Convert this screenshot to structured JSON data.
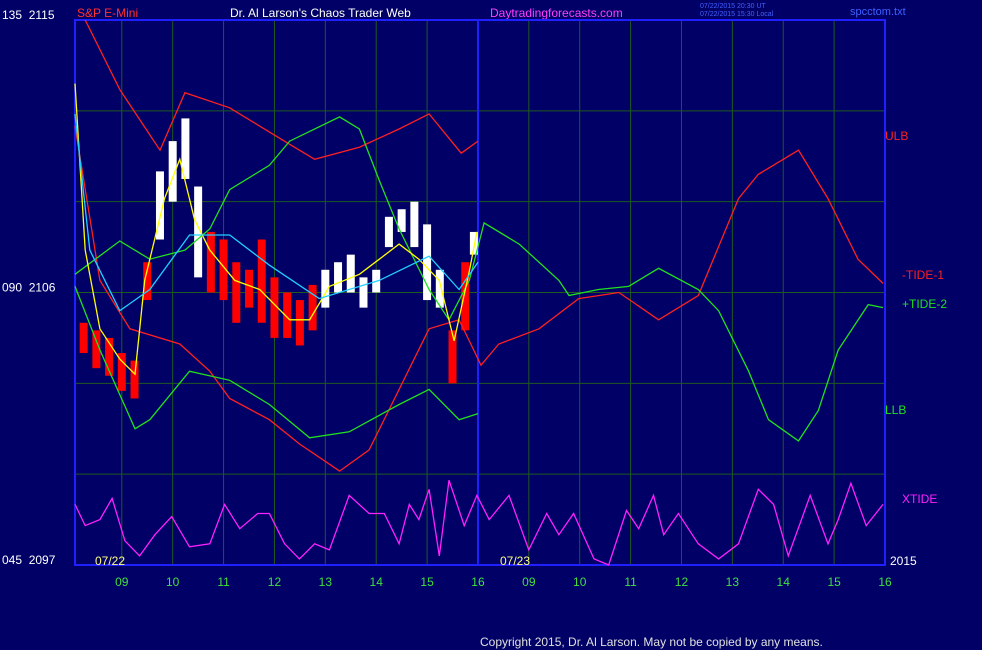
{
  "chart_data": {
    "type": "line",
    "title": "Dr. Al Larson's Chaos Trader Web",
    "subtitle": "S&P E-Mini",
    "source": "Daytradingforecasts.com",
    "timestamps": [
      "07/22/2015 20:30 UT",
      "07/22/2015 15:30 Local"
    ],
    "file": "spcctom.txt",
    "copyright": "Copyright 2015, Dr. Al Larson. May not be copied by any means.",
    "date_labels": [
      "07/22",
      "07/23",
      "2015"
    ],
    "background": "#000066",
    "grid": true,
    "grid_color": "#1f5a1f",
    "frame_color": "#2020ff",
    "day_break": 16,
    "xlim": [
      8.08,
      24
    ],
    "xticks": [
      {
        "value": 9,
        "label": "09"
      },
      10,
      11,
      12,
      13,
      14,
      15,
      16,
      {
        "value": 17,
        "label": "09"
      },
      {
        "value": 18,
        "label": "10"
      },
      {
        "value": 19,
        "label": "11"
      },
      {
        "value": 20,
        "label": "12"
      },
      {
        "value": 21,
        "label": "13"
      },
      {
        "value": 22,
        "label": "14"
      },
      {
        "value": 23,
        "label": "15"
      },
      {
        "value": 24,
        "label": "16"
      }
    ],
    "ylim": [
      2097,
      2115
    ],
    "yticks": [
      {
        "value": 2115,
        "label": "135  2115"
      },
      {
        "value": 2106,
        "label": "090  2106"
      },
      {
        "value": 2097,
        "label": "045  2097"
      }
    ],
    "ygrid": [
      2100,
      2103,
      2109,
      2112
    ],
    "bars": {
      "x": [
        8.25,
        8.5,
        8.75,
        9.0,
        9.25,
        9.5,
        9.75,
        10.0,
        10.25,
        10.5,
        10.75,
        11.0,
        11.25,
        11.5,
        11.75,
        12.0,
        12.25,
        12.5,
        12.75,
        13.0,
        13.25,
        13.5,
        13.75,
        14.0,
        14.25,
        14.5,
        14.75,
        15.0,
        15.25,
        15.5,
        15.75,
        15.92
      ],
      "high": [
        2105,
        2104.75,
        2104.5,
        2104,
        2103.75,
        2107,
        2110,
        2111,
        2111.75,
        2109.5,
        2108,
        2107.75,
        2107,
        2106.75,
        2107.75,
        2106.5,
        2106,
        2105.75,
        2106.25,
        2106.75,
        2107,
        2107.25,
        2106.5,
        2106.75,
        2108.5,
        2108.75,
        2109,
        2108.25,
        2106.75,
        2104.75,
        2107,
        2108
      ],
      "low": [
        2104,
        2103.5,
        2103.25,
        2102.75,
        2102.5,
        2105.75,
        2107.75,
        2109,
        2109.75,
        2106.5,
        2106,
        2105.75,
        2105,
        2105.5,
        2105,
        2104.5,
        2104.5,
        2104.25,
        2104.75,
        2105.5,
        2106,
        2106,
        2105.5,
        2106,
        2107.5,
        2108,
        2107.5,
        2105.75,
        2105.5,
        2103,
        2104.75,
        2107.25
      ],
      "colors": [
        "#ff0000",
        "#ff0000",
        "#ff0000",
        "#ff0000",
        "#ff0000",
        "#ff0000",
        "#ffffff",
        "#ffffff",
        "#ffffff",
        "#ffffff",
        "#ff0000",
        "#ff0000",
        "#ff0000",
        "#ff0000",
        "#ff0000",
        "#ff0000",
        "#ff0000",
        "#ff0000",
        "#ff0000",
        "#ffffff",
        "#ffffff",
        "#ffffff",
        "#ffffff",
        "#ffffff",
        "#ffffff",
        "#ffffff",
        "#ffffff",
        "#ffffff",
        "#ffffff",
        "#ff0000",
        "#ff0000",
        "#ffffff"
      ]
    },
    "series": [
      {
        "name": "ULB",
        "color": "#ff2020",
        "x": [
          8.28,
          8.96,
          9.75,
          10.24,
          11.12,
          12.0,
          12.79,
          13.67,
          14.45,
          15.04,
          15.67,
          16.0
        ],
        "values": [
          2115,
          2112.7,
          2110.7,
          2112.6,
          2112.1,
          2111.2,
          2110.4,
          2110.8,
          2111.4,
          2111.9,
          2110.6,
          2111.0
        ]
      },
      {
        "name": "-TIDE-1",
        "color": "#ff2020",
        "x": [
          8.08,
          8.57,
          9.16,
          10.14,
          10.73,
          11.12,
          11.9,
          12.49,
          13.28,
          13.86,
          14.45,
          15.04,
          15.63,
          15.83,
          16.06,
          16.41,
          17.2,
          17.98,
          18.77,
          19.55,
          20.33,
          21.12,
          21.51,
          22.3,
          22.88,
          23.47,
          23.96
        ],
        "values": [
          2111.5,
          2106.4,
          2104.8,
          2104.3,
          2103.4,
          2102.5,
          2101.8,
          2101.0,
          2100.1,
          2100.8,
          2102.8,
          2104.8,
          2105.1,
          2104.4,
          2103.6,
          2104.3,
          2104.8,
          2105.8,
          2106.0,
          2105.1,
          2105.9,
          2109.1,
          2109.9,
          2110.7,
          2109.1,
          2107.1,
          2106.3
        ]
      },
      {
        "name": "+TIDE-2",
        "color": "#20e020",
        "x": [
          8.08,
          8.96,
          9.55,
          10.24,
          10.73,
          11.12,
          11.9,
          12.3,
          13.28,
          13.67,
          14.06,
          14.45,
          15.04,
          15.43,
          15.83,
          16.12,
          16.81,
          17.59,
          17.79,
          18.37,
          18.96,
          19.55,
          20.33,
          20.73,
          21.32,
          21.71,
          22.3,
          22.69,
          23.08,
          23.67,
          23.96
        ],
        "values": [
          2106.6,
          2107.7,
          2107.1,
          2107.4,
          2108.1,
          2109.4,
          2110.2,
          2111.0,
          2111.8,
          2111.4,
          2109.7,
          2108.1,
          2106.1,
          2105.1,
          2106.4,
          2108.3,
          2107.6,
          2106.4,
          2105.9,
          2106.1,
          2106.2,
          2106.8,
          2106.1,
          2105.4,
          2103.4,
          2101.8,
          2101.1,
          2102.1,
          2104.1,
          2105.6,
          2105.5
        ]
      },
      {
        "name": "LLB",
        "color": "#20e020",
        "x": [
          8.08,
          8.57,
          9.26,
          9.55,
          10.33,
          11.12,
          11.9,
          12.69,
          13.47,
          14.45,
          15.04,
          15.63,
          16.0
        ],
        "values": [
          2106.2,
          2104.1,
          2101.5,
          2101.8,
          2103.4,
          2103.1,
          2102.3,
          2101.2,
          2101.4,
          2102.3,
          2102.8,
          2101.8,
          2102.0
        ]
      },
      {
        "name": "XTIDE",
        "color": "#ff20ff",
        "x": [
          8.08,
          8.28,
          8.57,
          8.81,
          9.06,
          9.35,
          9.65,
          9.98,
          10.33,
          10.73,
          11.02,
          11.32,
          11.67,
          11.9,
          12.2,
          12.49,
          12.79,
          13.08,
          13.47,
          13.86,
          14.16,
          14.45,
          14.65,
          14.84,
          15.04,
          15.24,
          15.43,
          15.73,
          15.98,
          16.22,
          16.61,
          17.0,
          17.35,
          17.59,
          17.88,
          18.28,
          18.57,
          18.92,
          19.16,
          19.45,
          19.65,
          19.94,
          20.33,
          20.73,
          21.12,
          21.51,
          21.81,
          22.1,
          22.53,
          22.88,
          23.08,
          23.33,
          23.63,
          23.96
        ],
        "values": [
          2099.0,
          2098.3,
          2098.5,
          2099.2,
          2097.8,
          2097.3,
          2098.0,
          2098.6,
          2097.6,
          2097.7,
          2099.0,
          2098.2,
          2098.7,
          2098.7,
          2097.7,
          2097.2,
          2097.7,
          2097.5,
          2099.3,
          2098.7,
          2098.7,
          2097.7,
          2099.0,
          2098.5,
          2099.5,
          2097.3,
          2099.8,
          2098.3,
          2099.3,
          2098.5,
          2099.3,
          2097.5,
          2098.7,
          2098.0,
          2098.7,
          2097.2,
          2097.0,
          2098.8,
          2098.2,
          2099.3,
          2098.0,
          2098.7,
          2097.7,
          2097.2,
          2097.7,
          2099.5,
          2099.0,
          2097.3,
          2099.3,
          2097.7,
          2098.5,
          2099.7,
          2098.3,
          2099.0
        ]
      },
      {
        "color": "#ffff00",
        "x": [
          8.08,
          8.28,
          8.57,
          8.96,
          9.26,
          9.45,
          9.84,
          10.14,
          10.43,
          10.73,
          11.22,
          11.71,
          12.3,
          12.69,
          13.08,
          13.67,
          14.06,
          14.45,
          14.84,
          15.24,
          15.53,
          15.83,
          15.98
        ],
        "values": [
          2112.9,
          2107.4,
          2104.8,
          2103.8,
          2103.3,
          2106.4,
          2109.1,
          2110.4,
          2108.4,
          2107.4,
          2106.4,
          2106.1,
          2105.1,
          2105.1,
          2106.2,
          2106.6,
          2107.1,
          2107.6,
          2107.1,
          2106.4,
          2104.4,
          2106.7,
          2108.0
        ]
      },
      {
        "color": "#20d0ff",
        "x": [
          8.08,
          8.37,
          8.96,
          9.55,
          10.33,
          11.12,
          11.9,
          12.88,
          14.06,
          15.04,
          15.63,
          16.0
        ],
        "values": [
          2111.9,
          2107.4,
          2105.4,
          2106.1,
          2107.9,
          2107.9,
          2106.9,
          2105.8,
          2106.4,
          2107.2,
          2106.1,
          2107.0
        ]
      }
    ]
  }
}
